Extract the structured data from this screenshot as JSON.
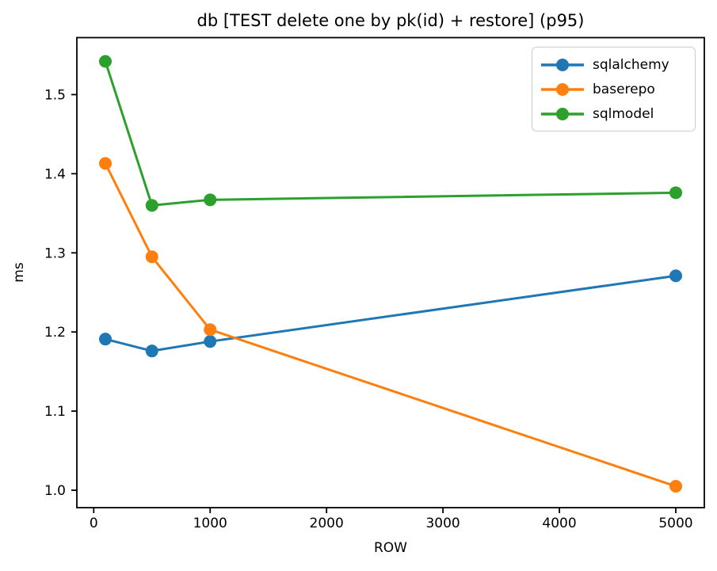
{
  "chart_data": {
    "type": "line",
    "title": "db [TEST delete one by pk(id) + restore] (p95)",
    "xlabel": "ROW",
    "ylabel": "ms",
    "x": [
      100,
      500,
      1000,
      5000
    ],
    "series": [
      {
        "name": "sqlalchemy",
        "color": "#1f77b4",
        "values": [
          1.191,
          1.176,
          1.188,
          1.271
        ]
      },
      {
        "name": "baserepo",
        "color": "#ff7f0e",
        "values": [
          1.413,
          1.295,
          1.203,
          1.005
        ]
      },
      {
        "name": "sqlmodel",
        "color": "#2ca02c",
        "values": [
          1.542,
          1.36,
          1.367,
          1.376
        ]
      }
    ],
    "xlim": [
      -145,
      5245
    ],
    "ylim": [
      0.978,
      1.572
    ],
    "xticks": {
      "values": [
        0,
        1000,
        2000,
        3000,
        4000,
        5000
      ],
      "labels": [
        "0",
        "1000",
        "2000",
        "3000",
        "4000",
        "5000"
      ]
    },
    "yticks": {
      "values": [
        1.0,
        1.1,
        1.2,
        1.3,
        1.4,
        1.5
      ],
      "labels": [
        "1.0",
        "1.1",
        "1.2",
        "1.3",
        "1.4",
        "1.5"
      ]
    },
    "grid": false,
    "legend": {
      "position": "upper right"
    },
    "style": {
      "marker": "circle",
      "marker_radius": 8,
      "line_width": 3,
      "spine_color": "#000000",
      "tick_color": "#000000",
      "background": "#ffffff"
    }
  }
}
